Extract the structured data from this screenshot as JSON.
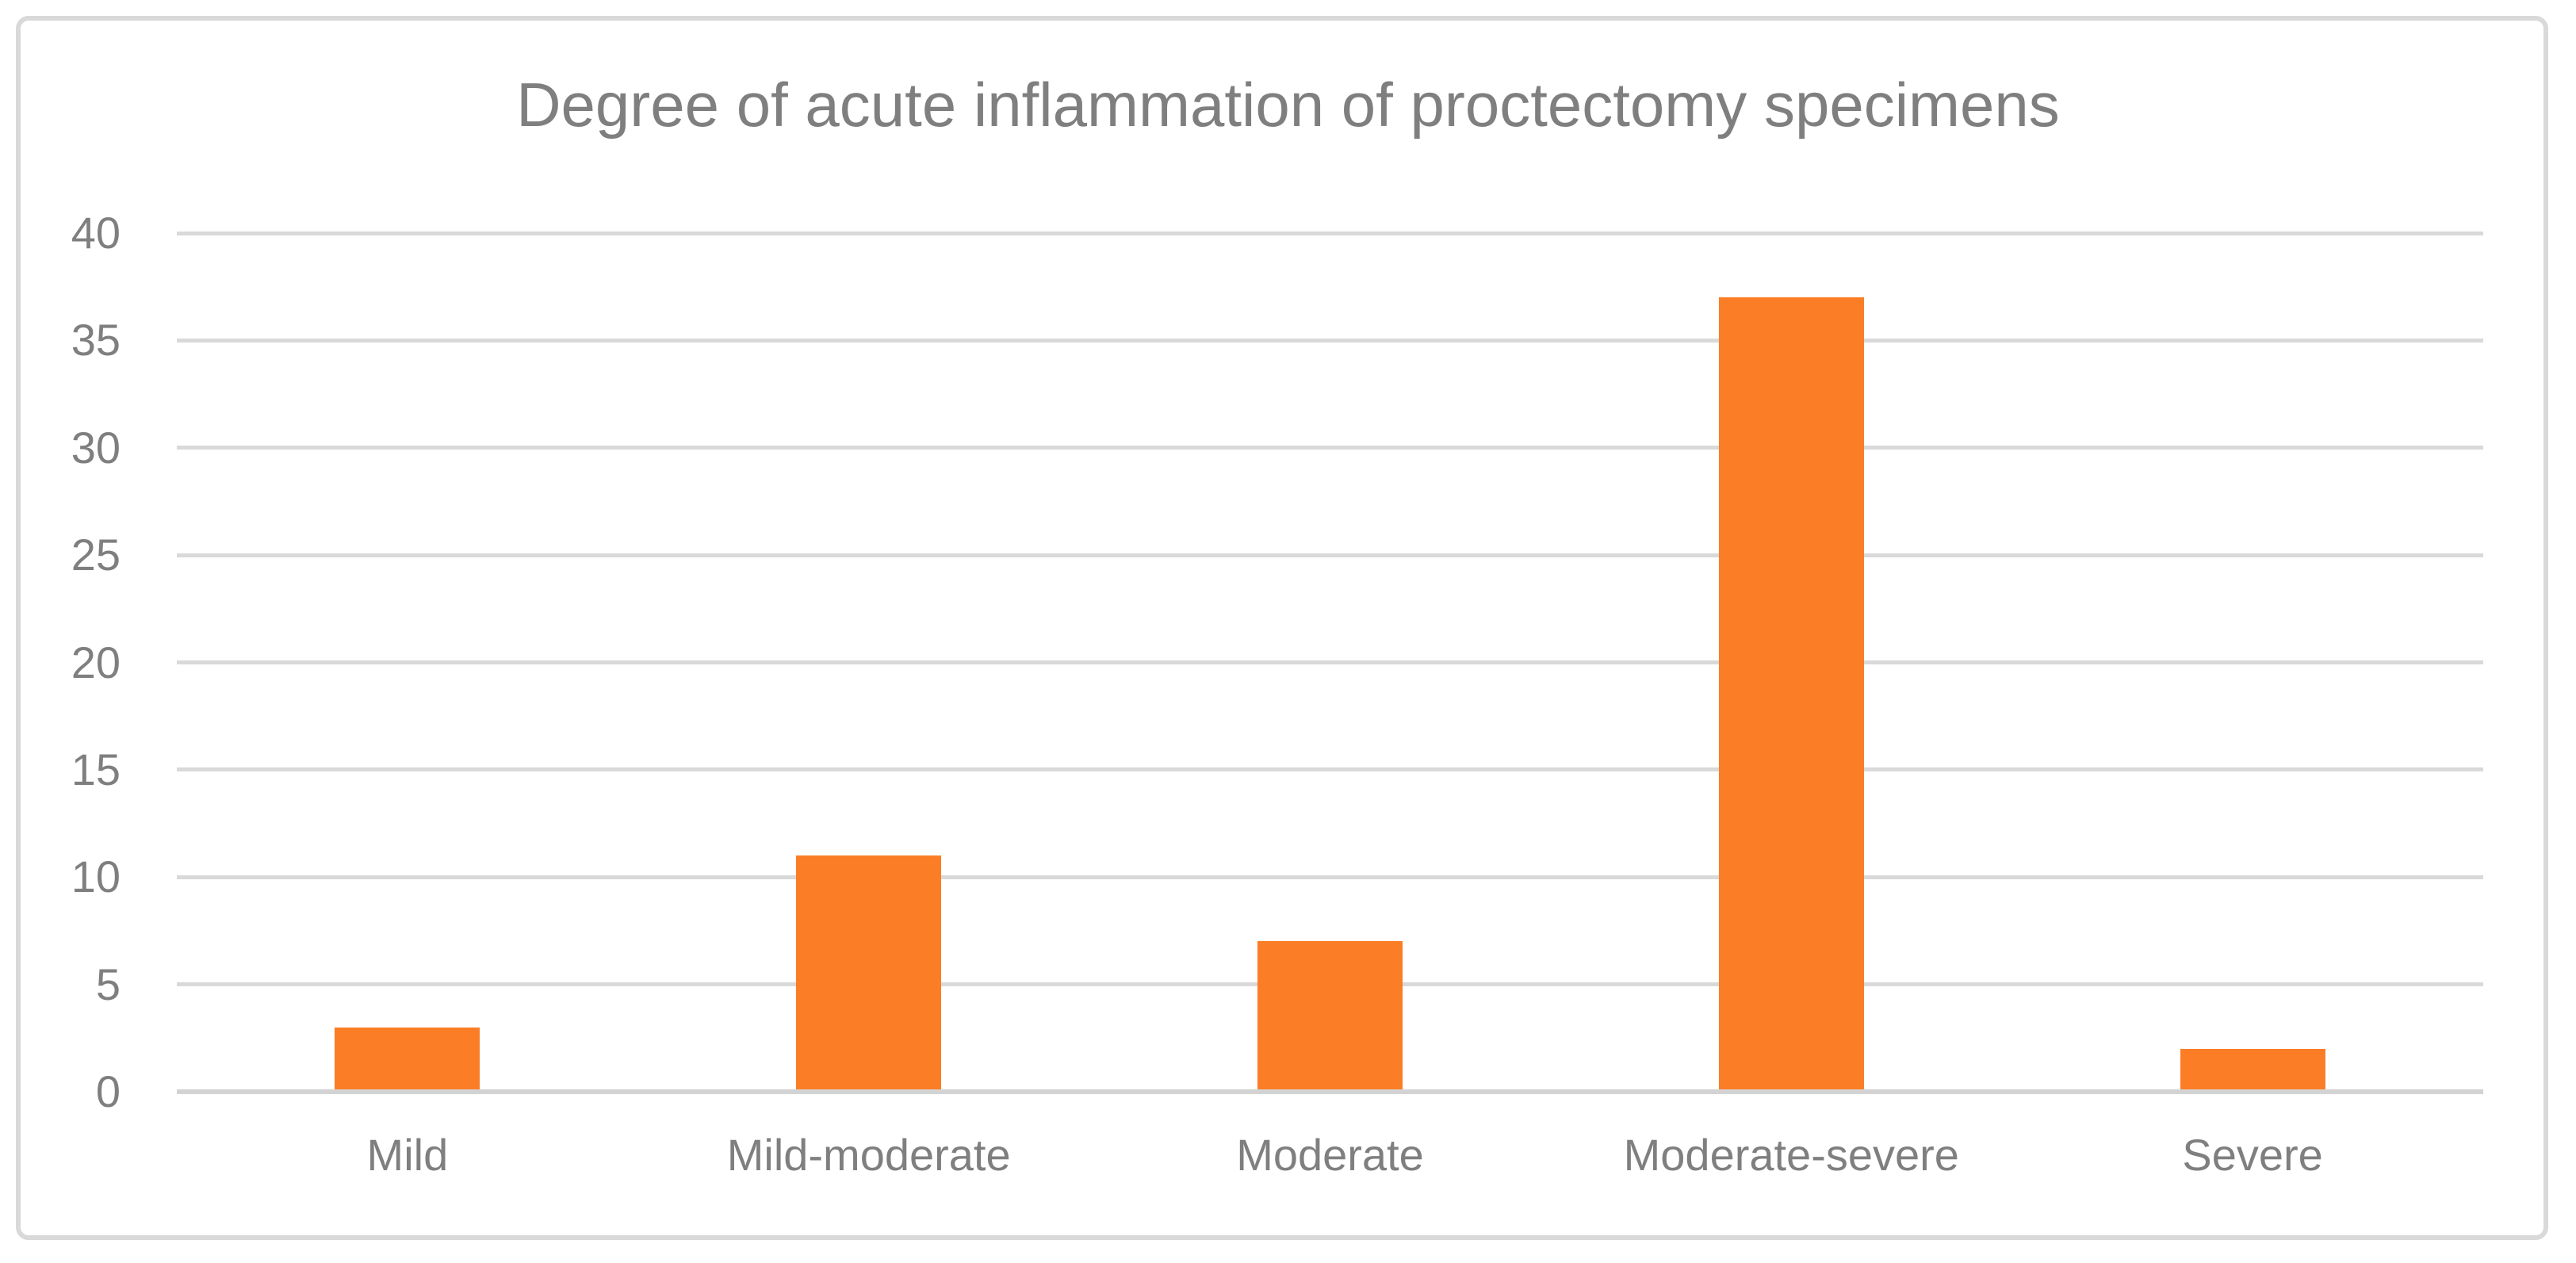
{
  "chart_data": {
    "type": "bar",
    "title": "Degree of acute inflammation of proctectomy specimens",
    "categories": [
      "Mild",
      "Mild-moderate",
      "Moderate",
      "Moderate-severe",
      "Severe"
    ],
    "values": [
      3,
      11,
      7,
      37,
      2
    ],
    "xlabel": "",
    "ylabel": "",
    "ylim": [
      0,
      40
    ],
    "ytick_step": 5,
    "ytick_labels": [
      "0",
      "5",
      "10",
      "15",
      "20",
      "25",
      "30",
      "35",
      "40"
    ],
    "grid": true,
    "legend": false,
    "colors": {
      "bar": "#fb7d26",
      "gridline": "#d9d9d9",
      "axis_line": "#d3d3d3",
      "text": "#7f7f7f",
      "frame_border": "#d9d9d9",
      "background": "#ffffff"
    }
  }
}
